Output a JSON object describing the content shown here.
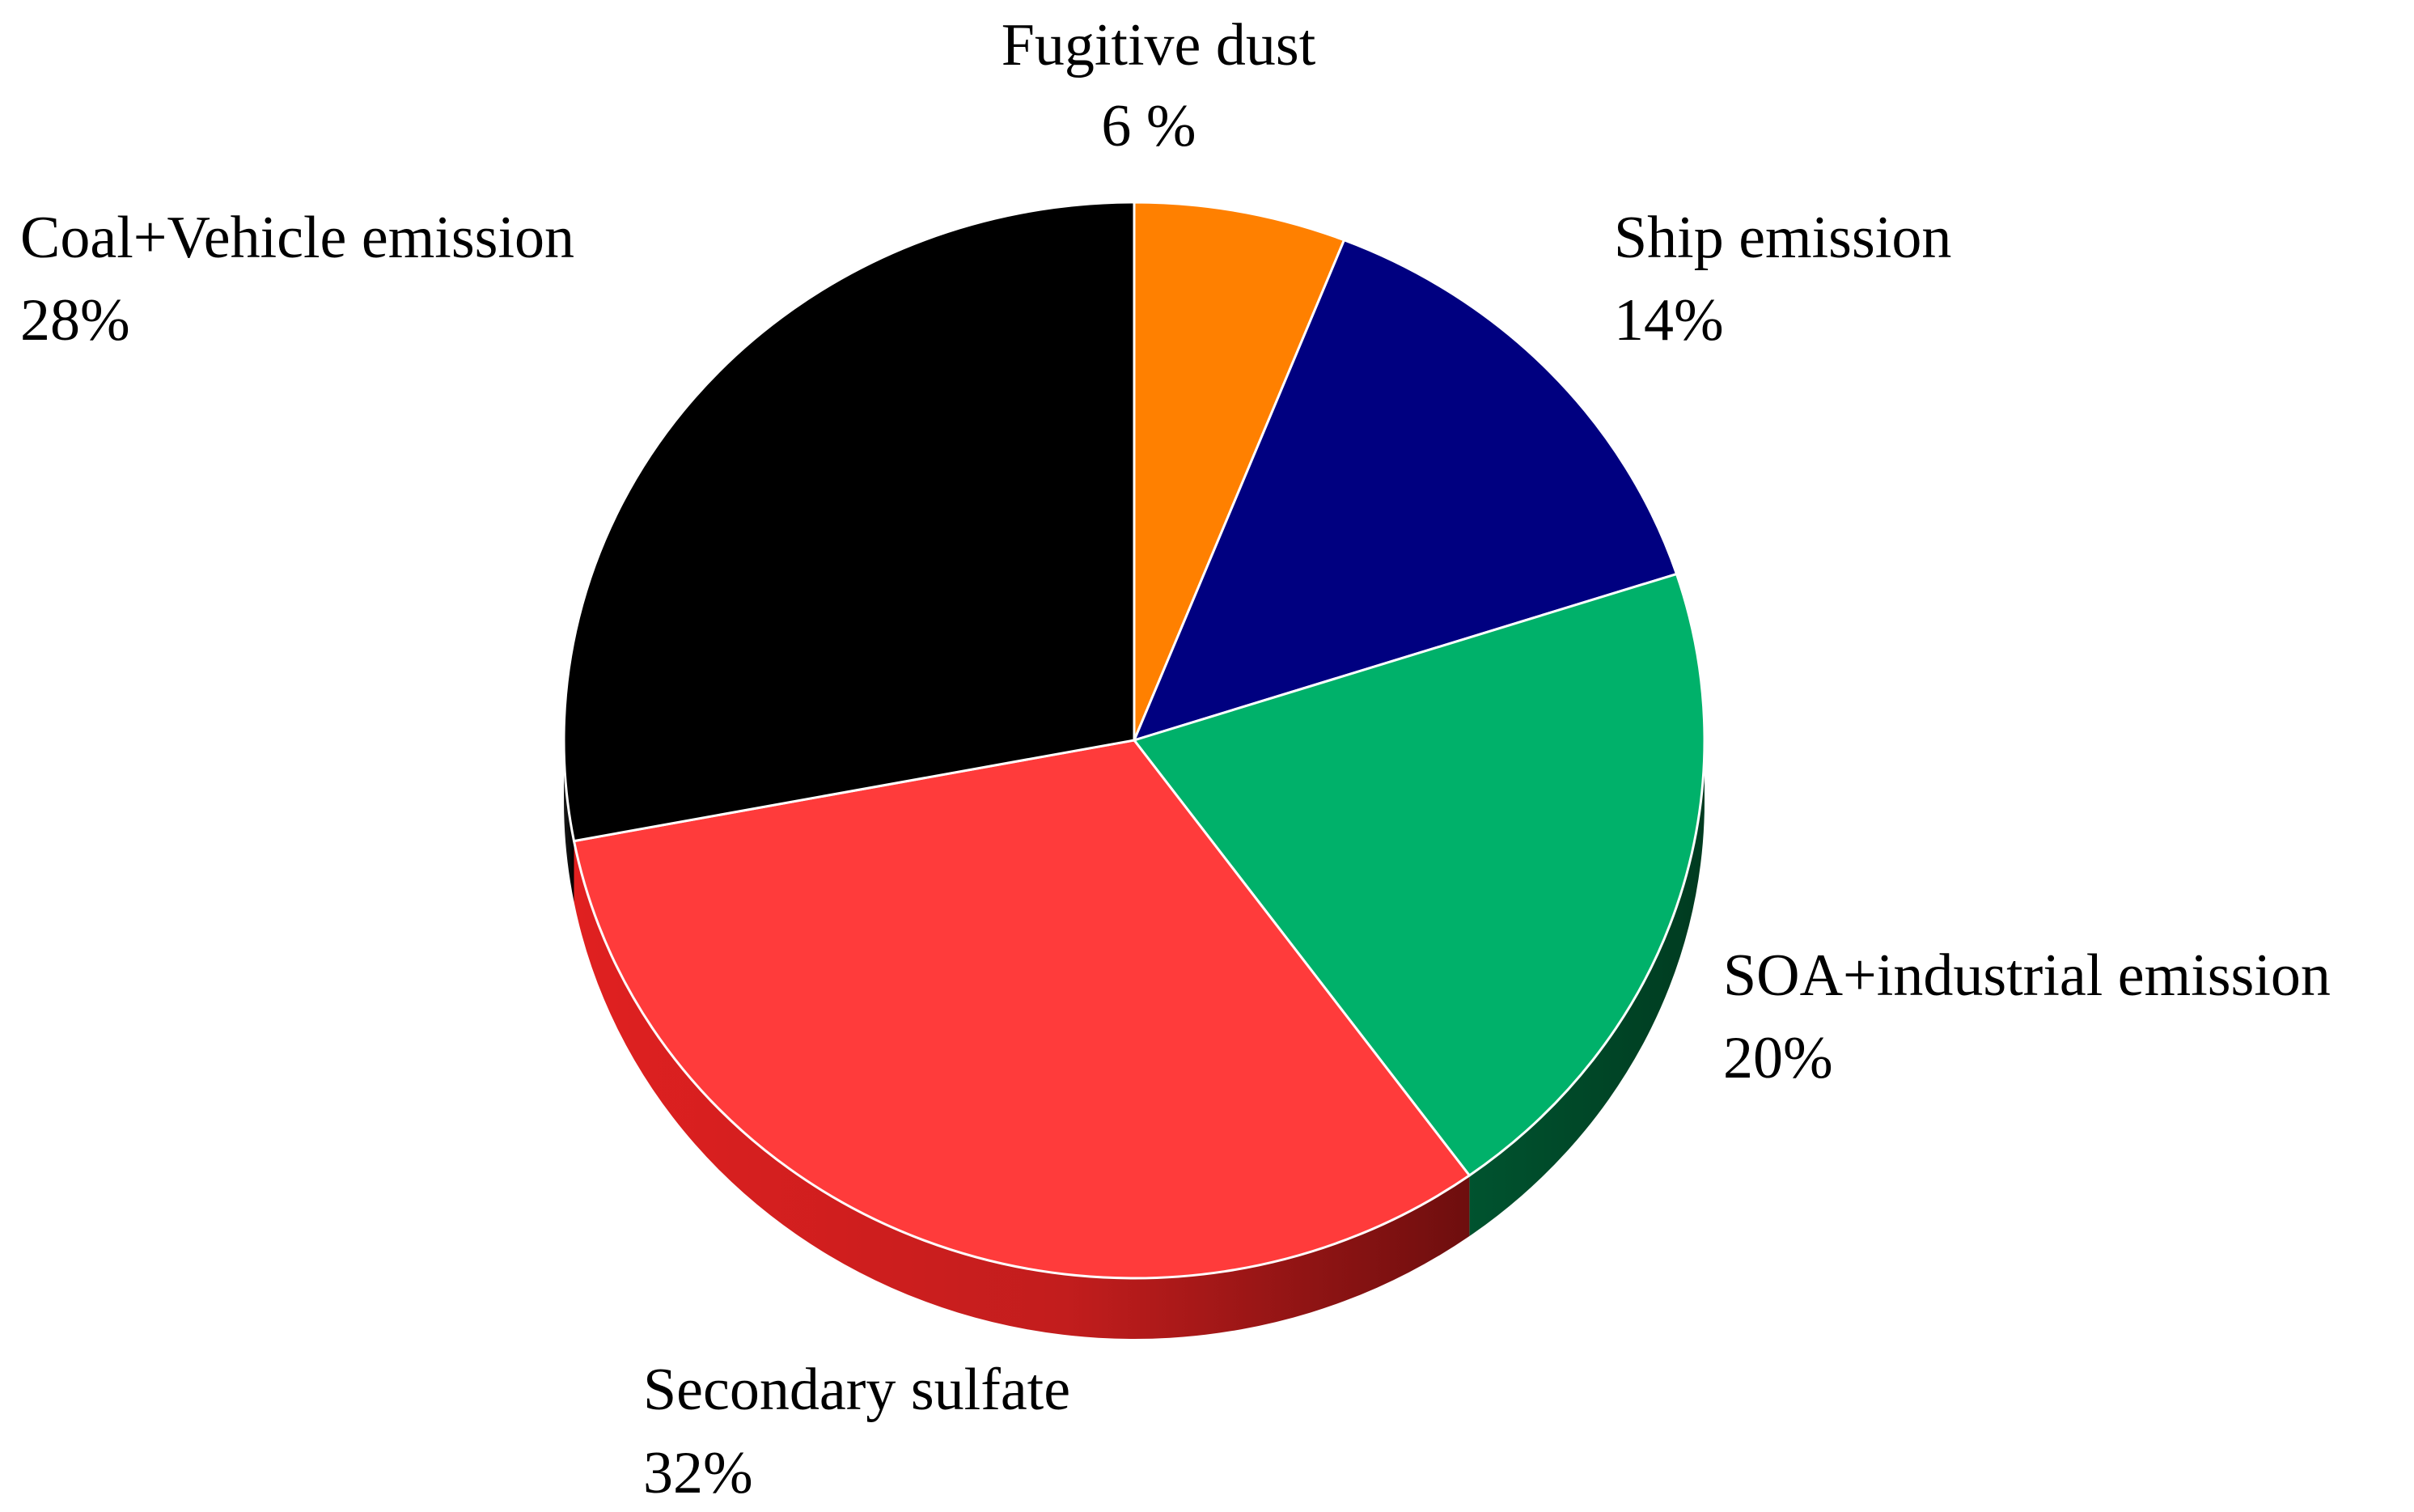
{
  "chart_data": {
    "type": "pie",
    "style": "3d",
    "unit": "%",
    "slices": [
      {
        "label": "Fugitive dust",
        "value": 6,
        "value_label": "6 %",
        "color": "#FF8000"
      },
      {
        "label": "Ship emission",
        "value": 14,
        "value_label": "14%",
        "color": "#000080"
      },
      {
        "label": "SOA+industrial emission",
        "value": 20,
        "value_label": "20%",
        "color": "#00B16A"
      },
      {
        "label": "Secondary sulfate",
        "value": 32,
        "value_label": "32%",
        "color": "#FF3B3B"
      },
      {
        "label": "Coal+Vehicle emission",
        "value": 28,
        "value_label": "28%",
        "color": "#000000"
      }
    ],
    "legend": "none",
    "labels": "outside"
  }
}
